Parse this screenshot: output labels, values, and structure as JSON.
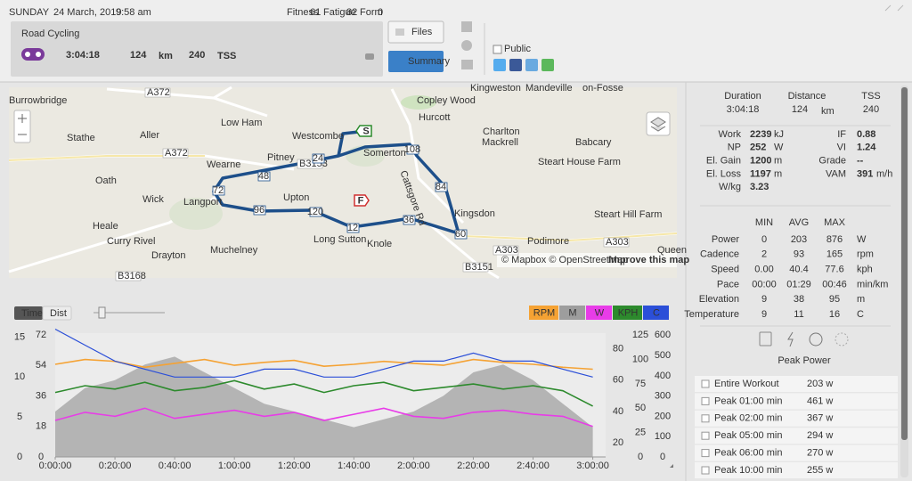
{
  "header": {
    "day": "SUNDAY",
    "date": "24 March, 2019",
    "time": "9:58 am",
    "fitness_label": "Fitness",
    "fitness": "61",
    "fatigue_label": "Fatigue",
    "fatigue": "82",
    "form_label": "Form",
    "form": "0"
  },
  "workout": {
    "title": "Road Cycling",
    "duration": "3:04:18",
    "distance": "124",
    "distance_unit": "km",
    "tss": "240",
    "tss_unit": "TSS"
  },
  "buttons": {
    "files": "Files",
    "summary": "Summary",
    "public": "Public"
  },
  "map": {
    "places": [
      "Burrowbridge",
      "Aller",
      "Low Ham",
      "Westcombe",
      "Stathe",
      "Wearne",
      "Pitney",
      "Somerton",
      "Hurcott",
      "Copley Wood",
      "Kingweston",
      "Charlton",
      "Mackrell",
      "Babcary",
      "Steart House Farm",
      "Oath",
      "Wick",
      "Langport",
      "Upton",
      "Heale",
      "Curry Rivel",
      "Drayton",
      "Muchelney",
      "Long Sutton",
      "Knole",
      "Kingsdon",
      "Steart Hill Farm",
      "Podimore",
      "Mandeville",
      "on-Fosse",
      "Queen",
      "Cattsgore Rd"
    ],
    "roads": [
      "A372",
      "A372",
      "B3153",
      "A303",
      "A303",
      "B3151",
      "B3168"
    ],
    "route_labels": [
      "24",
      "48",
      "72",
      "96",
      "120",
      "12",
      "36",
      "60",
      "84",
      "108"
    ],
    "start": "S",
    "finish": "F",
    "attribution": "© Mapbox © OpenStreetMap",
    "improve": "Improve this map"
  },
  "chart_controls": {
    "time": "Time",
    "dist": "Dist"
  },
  "chart_data": {
    "type": "line",
    "x": [
      0,
      10,
      20,
      30,
      40,
      50,
      60,
      70,
      80,
      90,
      100,
      110,
      120,
      130,
      140,
      150,
      160,
      170,
      180
    ],
    "xlim": [
      0,
      184.3
    ],
    "xticks": [
      {
        "value": 0,
        "label": "0:00:00"
      },
      {
        "value": 20,
        "label": "0:20:00"
      },
      {
        "value": 40,
        "label": "0:40:00"
      },
      {
        "value": 60,
        "label": "1:00:00"
      },
      {
        "value": 80,
        "label": "1:20:00"
      },
      {
        "value": 100,
        "label": "1:40:00"
      },
      {
        "value": 120,
        "label": "2:00:00"
      },
      {
        "value": 140,
        "label": "2:20:00"
      },
      {
        "value": 160,
        "label": "2:40:00"
      },
      {
        "value": 180,
        "label": "3:00:00"
      }
    ],
    "series": [
      {
        "name": "RPM",
        "color": "#f5a233",
        "type": "line",
        "ylim": [
          0,
          127
        ],
        "yticks": [
          0,
          25,
          50,
          75,
          100,
          125
        ],
        "values": [
          95,
          100,
          98,
          92,
          96,
          100,
          94,
          97,
          99,
          93,
          95,
          98,
          96,
          94,
          100,
          97,
          95,
          92,
          90
        ]
      },
      {
        "name": "M",
        "color": "#9d9d9d",
        "type": "area",
        "ylim": [
          11,
          90
        ],
        "yticks": [
          20,
          40,
          60,
          80
        ],
        "values": [
          40,
          55,
          60,
          70,
          75,
          65,
          55,
          45,
          40,
          35,
          30,
          35,
          40,
          50,
          65,
          70,
          60,
          45,
          30
        ]
      },
      {
        "name": "W",
        "color": "#e83ce8",
        "type": "line",
        "ylim": [
          0,
          610
        ],
        "yticks": [
          0,
          100,
          200,
          300,
          400,
          500,
          600
        ],
        "values": [
          180,
          220,
          200,
          240,
          190,
          210,
          230,
          200,
          220,
          180,
          210,
          240,
          200,
          190,
          220,
          230,
          210,
          200,
          150
        ]
      },
      {
        "name": "KPH",
        "color": "#2d8a2d",
        "type": "line",
        "ylim": [
          0,
          73
        ],
        "yticks": [
          0,
          18,
          36,
          54,
          72
        ],
        "values": [
          38,
          42,
          40,
          44,
          39,
          41,
          45,
          40,
          43,
          38,
          42,
          44,
          39,
          41,
          43,
          40,
          42,
          39,
          30
        ]
      },
      {
        "name": "C",
        "color": "#2b4fd8",
        "type": "line",
        "ylim": [
          0,
          15.5
        ],
        "yticks": [
          0,
          5,
          10,
          15
        ],
        "values": [
          16,
          14,
          12,
          11,
          10,
          10,
          10,
          11,
          11,
          10,
          10,
          11,
          12,
          12,
          13,
          12,
          12,
          11,
          10
        ]
      }
    ]
  },
  "panel": {
    "summary": [
      {
        "label": "Duration",
        "value": "3:04:18",
        "unit": ""
      },
      {
        "label": "Distance",
        "value": "124",
        "unit": "km"
      },
      {
        "label": "TSS",
        "value": "240",
        "unit": ""
      }
    ],
    "stats_left": [
      [
        "Work",
        "2239",
        "kJ"
      ],
      [
        "NP",
        "252",
        "W"
      ],
      [
        "El. Gain",
        "1200",
        "m"
      ],
      [
        "El. Loss",
        "1197",
        "m"
      ],
      [
        "W/kg",
        "3.23",
        ""
      ]
    ],
    "stats_right": [
      [
        "IF",
        "0.88",
        ""
      ],
      [
        "VI",
        "1.24",
        ""
      ],
      [
        "Grade",
        "--",
        ""
      ],
      [
        "VAM",
        "391",
        "m/h"
      ]
    ],
    "table": {
      "header": [
        "MIN",
        "AVG",
        "MAX"
      ],
      "rows": [
        [
          "Power",
          "0",
          "203",
          "876",
          "W"
        ],
        [
          "Cadence",
          "2",
          "93",
          "165",
          "rpm"
        ],
        [
          "Speed",
          "0.00",
          "40.4",
          "77.6",
          "kph"
        ],
        [
          "Pace",
          "00:00",
          "01:29",
          "00:46",
          "min/km"
        ],
        [
          "Elevation",
          "9",
          "38",
          "95",
          "m"
        ],
        [
          "Temperature",
          "9",
          "11",
          "16",
          "C"
        ]
      ]
    },
    "peak_title": "Peak Power",
    "peaks": [
      [
        "Entire Workout",
        "203 w"
      ],
      [
        "Peak 01:00 min",
        "461 w"
      ],
      [
        "Peak 02:00 min",
        "367 w"
      ],
      [
        "Peak 05:00 min",
        "294 w"
      ],
      [
        "Peak 06:00 min",
        "270 w"
      ],
      [
        "Peak 10:00 min",
        "255 w"
      ]
    ]
  }
}
